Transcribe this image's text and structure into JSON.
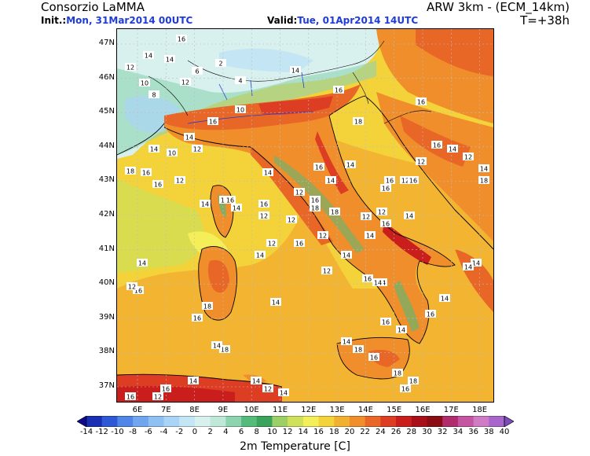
{
  "header": {
    "org": "Consorzio LaMMA",
    "model": "ARW 3km - (ECM_14km)",
    "init_label": "Init.:",
    "init_value": "Mon, 31Mar2014 00UTC",
    "valid_label": "Valid:",
    "valid_value": "Tue, 01Apr2014 14UTC",
    "timestep": "T=+38h"
  },
  "axes": {
    "lat_labels": [
      "47N",
      "46N",
      "45N",
      "44N",
      "43N",
      "42N",
      "41N",
      "40N",
      "39N",
      "38N",
      "37N"
    ],
    "lon_labels": [
      "6E",
      "7E",
      "8E",
      "9E",
      "10E",
      "11E",
      "12E",
      "13E",
      "14E",
      "15E",
      "16E",
      "17E",
      "18E"
    ]
  },
  "colorbar": {
    "title": "2m Temperature [C]",
    "ticks": [
      "-14",
      "-12",
      "-10",
      "-8",
      "-6",
      "-4",
      "-2",
      "0",
      "2",
      "4",
      "6",
      "8",
      "10",
      "12",
      "14",
      "16",
      "18",
      "20",
      "22",
      "24",
      "26",
      "28",
      "30",
      "32",
      "34",
      "36",
      "38",
      "40"
    ],
    "colors": [
      "#0c0c8c",
      "#1b2fb4",
      "#2f58d6",
      "#4f86e8",
      "#6fa6ee",
      "#8fc0f4",
      "#aad4f6",
      "#c4e6f4",
      "#d8f0ee",
      "#bfe8d8",
      "#8cd4b0",
      "#55bb7a",
      "#3aa35c",
      "#9ccf66",
      "#cfe05a",
      "#f4ee58",
      "#f4d23a",
      "#f2b030",
      "#ef8e2a",
      "#e86626",
      "#dd3d22",
      "#c91e1c",
      "#a80f18",
      "#8a0b14",
      "#b02c6c",
      "#c455a0",
      "#d07cc4",
      "#a866cc",
      "#7c4cb8"
    ]
  },
  "map": {
    "dominant_colors": {
      "sea": "#f4d23a",
      "warm_sea": "#f2b030",
      "land_warm": "#ef8e2a",
      "land_hot": "#e86626",
      "alps_cold": "#d8f0ee",
      "mountain": "#55bb7a",
      "hot_red": "#dd3d22"
    },
    "value_labels": [
      {
        "v": "16"
      },
      {
        "v": "14"
      },
      {
        "v": "12"
      },
      {
        "v": "14"
      },
      {
        "v": "10"
      },
      {
        "v": "12"
      },
      {
        "v": "8"
      },
      {
        "v": "6"
      },
      {
        "v": "2"
      },
      {
        "v": "4"
      },
      {
        "v": "14"
      },
      {
        "v": "16"
      },
      {
        "v": "18"
      },
      {
        "v": "10"
      },
      {
        "v": "16"
      },
      {
        "v": "14"
      },
      {
        "v": "12"
      },
      {
        "v": "10"
      },
      {
        "v": "14"
      },
      {
        "v": "16"
      },
      {
        "v": "18"
      },
      {
        "v": "16"
      },
      {
        "v": "14"
      },
      {
        "v": "12"
      },
      {
        "v": "14"
      },
      {
        "v": "12"
      },
      {
        "v": "16"
      },
      {
        "v": "12"
      },
      {
        "v": "18"
      },
      {
        "v": "14"
      },
      {
        "v": "12"
      },
      {
        "v": "16"
      },
      {
        "v": "14"
      },
      {
        "v": "16"
      },
      {
        "v": "12"
      },
      {
        "v": "12"
      },
      {
        "v": "14"
      },
      {
        "v": "16"
      },
      {
        "v": "14"
      },
      {
        "v": "18"
      },
      {
        "v": "14"
      },
      {
        "v": "16"
      },
      {
        "v": "14"
      },
      {
        "v": "12"
      },
      {
        "v": "14"
      },
      {
        "v": "12"
      },
      {
        "v": "12"
      },
      {
        "v": "16"
      },
      {
        "v": "16"
      },
      {
        "v": "12"
      },
      {
        "v": "14"
      },
      {
        "v": "12"
      },
      {
        "v": "14"
      },
      {
        "v": "16"
      },
      {
        "v": "14"
      },
      {
        "v": "16"
      },
      {
        "v": "14"
      },
      {
        "v": "14"
      },
      {
        "v": "14"
      },
      {
        "v": "18"
      },
      {
        "v": "14"
      },
      {
        "v": "12"
      },
      {
        "v": "14"
      },
      {
        "v": "16"
      },
      {
        "v": "16"
      },
      {
        "v": "14"
      },
      {
        "v": "14"
      },
      {
        "v": "16"
      },
      {
        "v": "14"
      },
      {
        "v": "18"
      },
      {
        "v": "16"
      },
      {
        "v": "18"
      },
      {
        "v": "16"
      },
      {
        "v": "18"
      },
      {
        "v": "14"
      },
      {
        "v": "16"
      },
      {
        "v": "12"
      },
      {
        "v": "16"
      },
      {
        "v": "18"
      },
      {
        "v": "14"
      },
      {
        "v": "12"
      },
      {
        "v": "14"
      },
      {
        "v": "16"
      },
      {
        "v": "14"
      },
      {
        "v": "12"
      },
      {
        "v": "16"
      },
      {
        "v": "14"
      },
      {
        "v": "18"
      },
      {
        "v": "16"
      },
      {
        "v": "16"
      }
    ]
  }
}
